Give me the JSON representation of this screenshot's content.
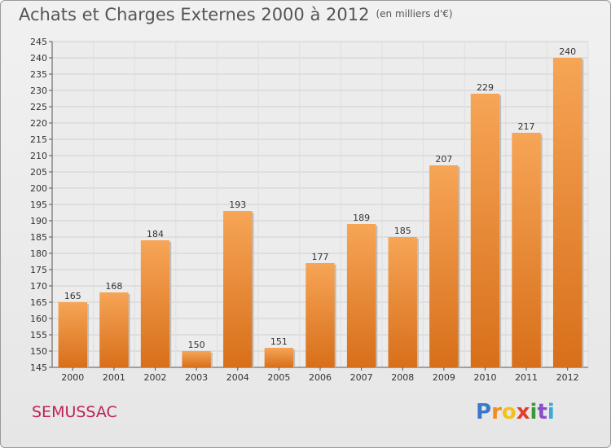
{
  "title": "Achats et Charges Externes 2000 à 2012",
  "subtitle": "(en milliers d'€)",
  "commune": "SEMUSSAC",
  "logo": {
    "text": "Proxiti",
    "letters": [
      "P",
      "r",
      "o",
      "x",
      "i",
      "t",
      "i"
    ],
    "colors": [
      "#3a78c9",
      "#f28c1a",
      "#f2c21a",
      "#e33b2e",
      "#3a9a3a",
      "#8a4fc7",
      "#3aa9d9"
    ]
  },
  "colors": {
    "bar_top": "#f6a556",
    "bar_bottom": "#d86f1a",
    "commune": "#c0205a"
  },
  "chart_data": {
    "type": "bar",
    "categories": [
      "2000",
      "2001",
      "2002",
      "2003",
      "2004",
      "2005",
      "2006",
      "2007",
      "2008",
      "2009",
      "2010",
      "2011",
      "2012"
    ],
    "values": [
      165,
      168,
      184,
      150,
      193,
      151,
      177,
      189,
      185,
      207,
      229,
      217,
      240
    ],
    "title": "Achats et Charges Externes 2000 à 2012",
    "subtitle": "(en milliers d'€)",
    "ylim": [
      145,
      245
    ],
    "yticks": [
      145,
      150,
      155,
      160,
      165,
      170,
      175,
      180,
      185,
      190,
      195,
      200,
      205,
      210,
      215,
      220,
      225,
      230,
      235,
      240,
      245
    ],
    "grid": true
  }
}
